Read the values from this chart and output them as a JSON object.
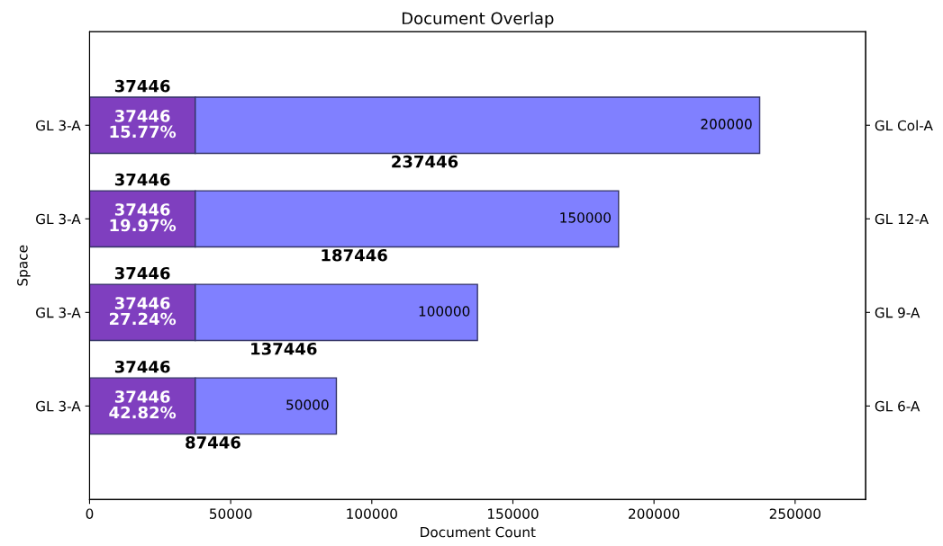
{
  "chart_data": {
    "type": "bar",
    "orientation": "horizontal",
    "stacked": true,
    "title": "Document Overlap",
    "xlabel": "Document Count",
    "ylabel": "Space",
    "categories": [
      "GL 3-A",
      "GL 3-A",
      "GL 3-A",
      "GL 3-A"
    ],
    "y2_categories": [
      "GL Col-A",
      "GL 12-A",
      "GL 9-A",
      "GL 6-A"
    ],
    "series": [
      {
        "color": "#7f3fbf",
        "values": [
          37446,
          37446,
          37446,
          37446
        ],
        "value_labels": [
          "37446\n15.77%",
          "37446\n19.97%",
          "37446\n27.24%",
          "37446\n42.82%"
        ]
      },
      {
        "color": "#8080ff",
        "values": [
          200000,
          150000,
          100000,
          50000
        ],
        "data_labels": true
      }
    ],
    "annotations": [
      "37446",
      "37446",
      "37446",
      "37446"
    ],
    "totals": [
      "237446",
      "187446",
      "137446",
      "87446"
    ],
    "xlim": [
      0,
      275000
    ],
    "xticks": [
      0,
      50000,
      100000,
      150000,
      200000,
      250000
    ],
    "grid": false,
    "legend": false
  }
}
